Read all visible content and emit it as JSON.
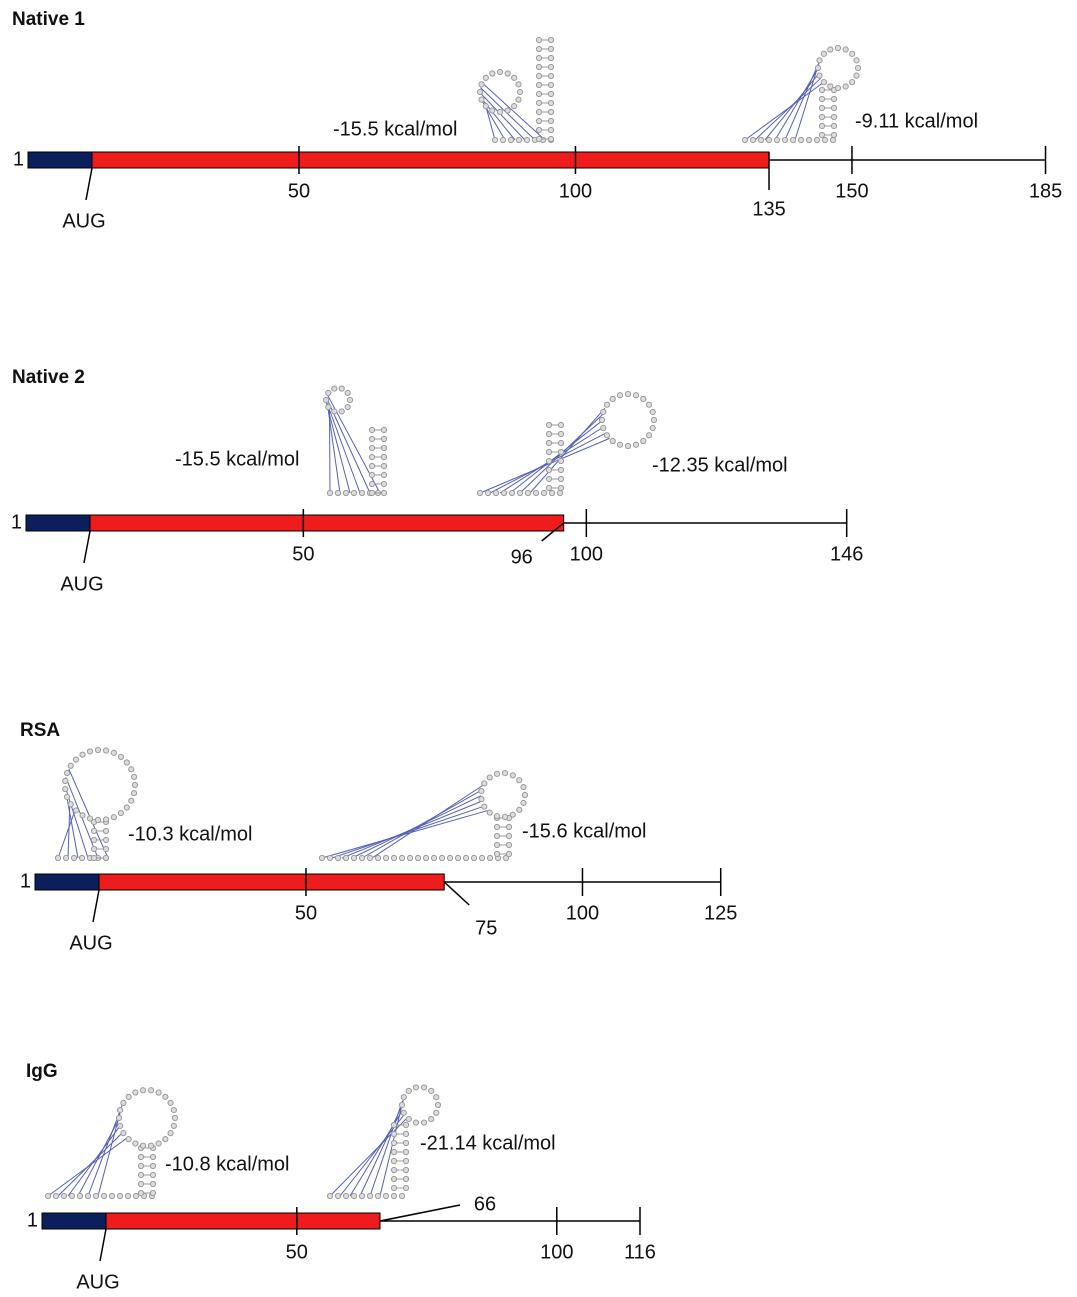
{
  "constructs": [
    {
      "title": "Native 1",
      "start": 1,
      "start_codon": "AUG",
      "cds_end": 135,
      "ticks": [
        50,
        100,
        150,
        185
      ],
      "structures": [
        {
          "energy": "-15.5 kcal/mol"
        },
        {
          "energy": "-9.11 kcal/mol"
        }
      ]
    },
    {
      "title": "Native 2",
      "start": 1,
      "start_codon": "AUG",
      "cds_end": 96,
      "ticks": [
        50,
        100,
        146
      ],
      "structures": [
        {
          "energy": "-15.5 kcal/mol"
        },
        {
          "energy": "-12.35 kcal/mol"
        }
      ]
    },
    {
      "title": "RSA",
      "start": 1,
      "start_codon": "AUG",
      "cds_end": 75,
      "ticks": [
        50,
        100,
        125
      ],
      "structures": [
        {
          "energy": "-10.3 kcal/mol"
        },
        {
          "energy": "-15.6 kcal/mol"
        }
      ]
    },
    {
      "title": "IgG",
      "start": 1,
      "start_codon": "AUG",
      "cds_end": 66,
      "ticks": [
        50,
        100,
        116
      ],
      "structures": [
        {
          "energy": "-10.8 kcal/mol"
        },
        {
          "energy": "-21.14 kcal/mol"
        }
      ]
    }
  ]
}
